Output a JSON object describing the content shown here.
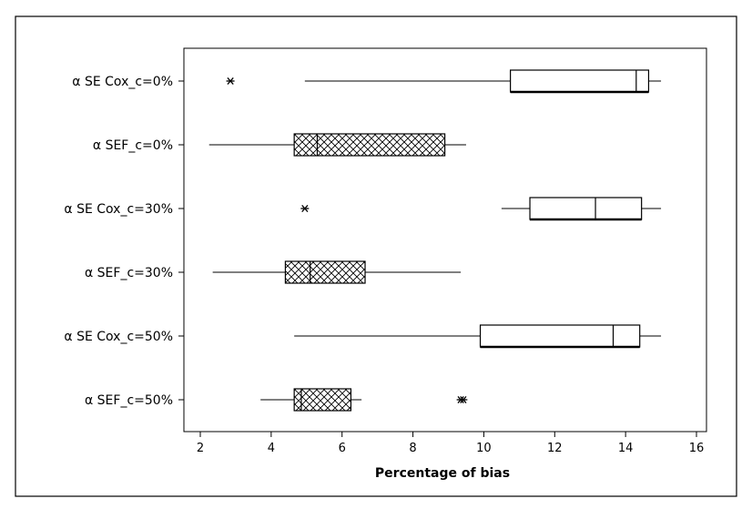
{
  "chart_data": {
    "type": "boxplot",
    "orientation": "horizontal",
    "title": "",
    "xlabel": "Percentage of bias",
    "ylabel": "",
    "xlim": [
      1.5,
      16.2
    ],
    "xticks": [
      2,
      4,
      6,
      8,
      10,
      12,
      14,
      16
    ],
    "grid": false,
    "legend": "none",
    "categories": [
      "α SE Cox_c=0%",
      "α SEF_c=0%",
      "α SE Cox_c=30%",
      "α SEF_c=30%",
      "α SE Cox_c=50%",
      "α SEF_c=50%"
    ],
    "boxes": [
      {
        "category": "α SE Cox_c=0%",
        "whisker_low": 4.95,
        "q1": 10.75,
        "median": 14.3,
        "q3": 14.65,
        "whisker_high": 15.0,
        "outliers": [
          2.85
        ],
        "fill": "none"
      },
      {
        "category": "α SEF_c=0%",
        "whisker_low": 2.25,
        "q1": 4.65,
        "median": 5.3,
        "q3": 8.9,
        "whisker_high": 9.5,
        "outliers": [],
        "fill": "crosshatch"
      },
      {
        "category": "α SE Cox_c=30%",
        "whisker_low": 10.5,
        "q1": 11.3,
        "median": 13.15,
        "q3": 14.45,
        "whisker_high": 15.0,
        "outliers": [
          4.95
        ],
        "fill": "none"
      },
      {
        "category": "α SEF_c=30%",
        "whisker_low": 2.35,
        "q1": 4.4,
        "median": 5.1,
        "q3": 6.65,
        "whisker_high": 9.35,
        "outliers": [],
        "fill": "crosshatch"
      },
      {
        "category": "α SE Cox_c=50%",
        "whisker_low": 4.65,
        "q1": 9.9,
        "median": 13.65,
        "q3": 14.4,
        "whisker_high": 15.0,
        "outliers": [],
        "fill": "none"
      },
      {
        "category": "α SEF_c=50%",
        "whisker_low": 3.7,
        "q1": 4.65,
        "median": 4.85,
        "q3": 6.25,
        "whisker_high": 6.55,
        "outliers": [
          9.35,
          9.42
        ],
        "fill": "crosshatch"
      }
    ],
    "outlier_marker": "asterisk",
    "colors": {
      "stroke": "#000000",
      "background": "#ffffff"
    }
  }
}
